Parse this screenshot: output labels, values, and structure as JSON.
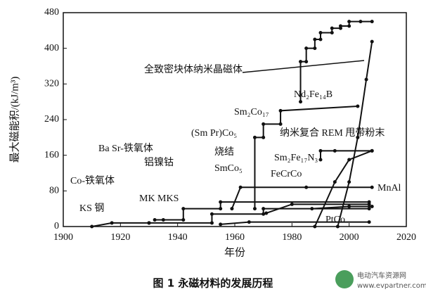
{
  "chart_data": {
    "type": "line",
    "xlabel": "年份",
    "ylabel": "最大磁能积/(kJ/m³)",
    "xlim": [
      1900,
      2020
    ],
    "xticks": [
      1900,
      1920,
      1940,
      1960,
      1980,
      2000,
      2020
    ],
    "ylim": [
      0,
      480
    ],
    "yticks": [
      0,
      80,
      160,
      240,
      320,
      400,
      480
    ],
    "color": "#111111",
    "series": [
      {
        "x": [
          1910,
          1917,
          1930
        ],
        "values": [
          0,
          8,
          8
        ]
      },
      {
        "x": [
          1930,
          1952,
          1952,
          1970,
          1970,
          2007
        ],
        "values": [
          8,
          8,
          28,
          28,
          40,
          40
        ]
      },
      {
        "x": [
          1932,
          1935,
          1942,
          1942,
          1955,
          1955,
          2007
        ],
        "values": [
          15,
          15,
          15,
          40,
          40,
          55,
          55
        ]
      },
      {
        "x": [
          1959,
          1962,
          1985,
          2008
        ],
        "values": [
          40,
          88,
          88,
          88
        ]
      },
      {
        "x": [
          1967,
          1967,
          1970,
          1970,
          1976,
          1976,
          2003
        ],
        "values": [
          40,
          200,
          200,
          230,
          230,
          260,
          270
        ]
      },
      {
        "x": [
          1983,
          1983,
          1985,
          1985,
          1988,
          1988,
          1990,
          1990,
          1994,
          1994,
          1997,
          1997,
          2000,
          2000,
          2004,
          2008
        ],
        "values": [
          280,
          370,
          370,
          400,
          400,
          420,
          420,
          435,
          435,
          445,
          445,
          450,
          450,
          460,
          460,
          460
        ]
      },
      {
        "x": [
          1988,
          1995,
          2000,
          2008
        ],
        "values": [
          0,
          100,
          150,
          170
        ]
      },
      {
        "x": [
          1990,
          1990,
          1995,
          2008
        ],
        "values": [
          150,
          170,
          170,
          170
        ]
      },
      {
        "x": [
          1971,
          1980,
          2007
        ],
        "values": [
          30,
          50,
          50
        ]
      },
      {
        "x": [
          1955,
          1965,
          2007
        ],
        "values": [
          5,
          10,
          10
        ]
      },
      {
        "x": [
          1987,
          2000,
          2008
        ],
        "values": [
          40,
          45,
          45
        ]
      },
      {
        "x": [
          1996,
          2000,
          2003,
          2006,
          2008
        ],
        "values": [
          0,
          100,
          200,
          330,
          415
        ]
      }
    ],
    "annotations": [
      "全致密块体纳米晶磁体",
      "Nd₂Fe₁₄B",
      "Sm₂Co₁₇",
      "(Sm Pr)Co₅",
      "纳米复合 REM 甩带粉末",
      "Ba Sr-铁氧体",
      "烧结",
      "SmCo₅",
      "Sm₂Fe₁₇N₃",
      "FeCrCo",
      "铝镍钴",
      "Co-铁氧体",
      "MK MKS",
      "MnAl",
      "KS 钢",
      "PtCo"
    ]
  },
  "caption": "图 1  永磁材料的发展历程",
  "watermark": [
    "电动汽车资源网",
    "www.evpartner.com"
  ]
}
